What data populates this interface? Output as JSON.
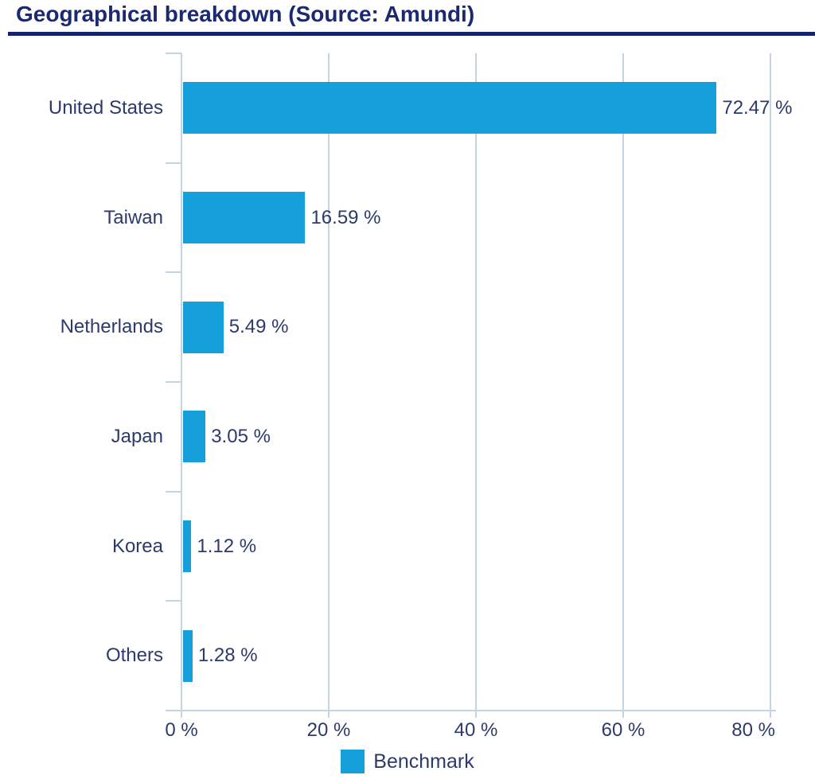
{
  "header": {
    "title": "Geographical breakdown (Source: Amundi)"
  },
  "chart_data": {
    "type": "bar",
    "orientation": "horizontal",
    "title": "Geographical breakdown (Source: Amundi)",
    "categories": [
      "United States",
      "Taiwan",
      "Netherlands",
      "Japan",
      "Korea",
      "Others"
    ],
    "series": [
      {
        "name": "Benchmark",
        "values": [
          72.47,
          16.59,
          5.49,
          3.05,
          1.12,
          1.28
        ]
      }
    ],
    "value_labels": [
      "72.47 %",
      "16.59 %",
      "5.49 %",
      "3.05 %",
      "1.12 %",
      "1.28 %"
    ],
    "x_tick_labels": [
      "0 %",
      "20 %",
      "40 %",
      "60 %",
      "80 %"
    ],
    "x_tick_values": [
      0,
      20,
      40,
      60,
      80
    ],
    "xlim": [
      0,
      80
    ],
    "grid": "vertical-on",
    "legend": {
      "position": "bottom-center",
      "entries": [
        {
          "label": "Benchmark",
          "color": "#16a0db"
        }
      ]
    },
    "colors": {
      "bar": "#16a0db",
      "grid": "#c6d4e2",
      "title": "#1b2a70",
      "rule": "#14246b",
      "text": "#2c3a6c"
    }
  }
}
